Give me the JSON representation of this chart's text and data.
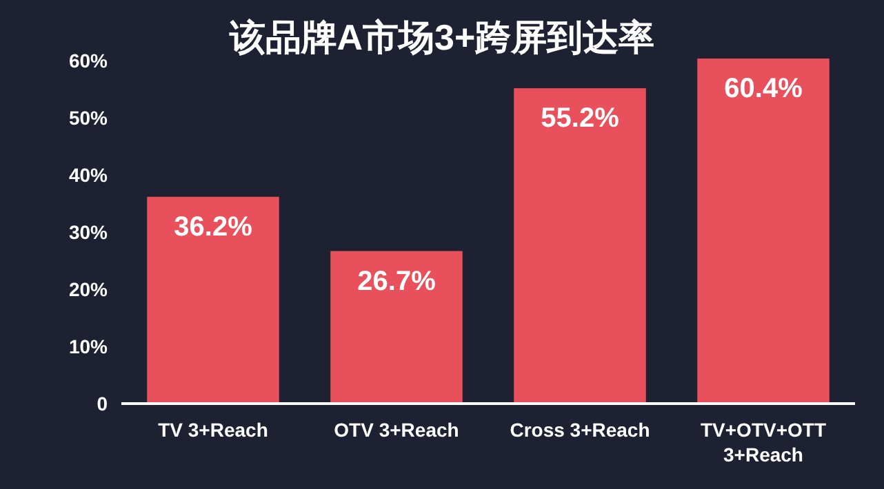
{
  "chart_data": {
    "type": "bar",
    "title": "该品牌A市场3+跨屏到达率",
    "categories": [
      "TV 3+Reach",
      "OTV 3+Reach",
      "Cross 3+Reach",
      "TV+OTV+OTT\n3+Reach"
    ],
    "values": [
      36.2,
      26.7,
      55.2,
      60.4
    ],
    "value_labels": [
      "36.2%",
      "26.7%",
      "55.2%",
      "60.4%"
    ],
    "color": "#e8505b",
    "ylim": [
      0,
      61
    ],
    "yticks": [
      0,
      {
        "value": 10,
        "label": "10%"
      },
      {
        "value": 20,
        "label": "20%"
      },
      {
        "value": 30,
        "label": "30%"
      },
      {
        "value": 40,
        "label": "40%"
      },
      {
        "value": 50,
        "label": "50%"
      },
      {
        "value": 60,
        "label": "60%"
      }
    ],
    "grid": false
  }
}
